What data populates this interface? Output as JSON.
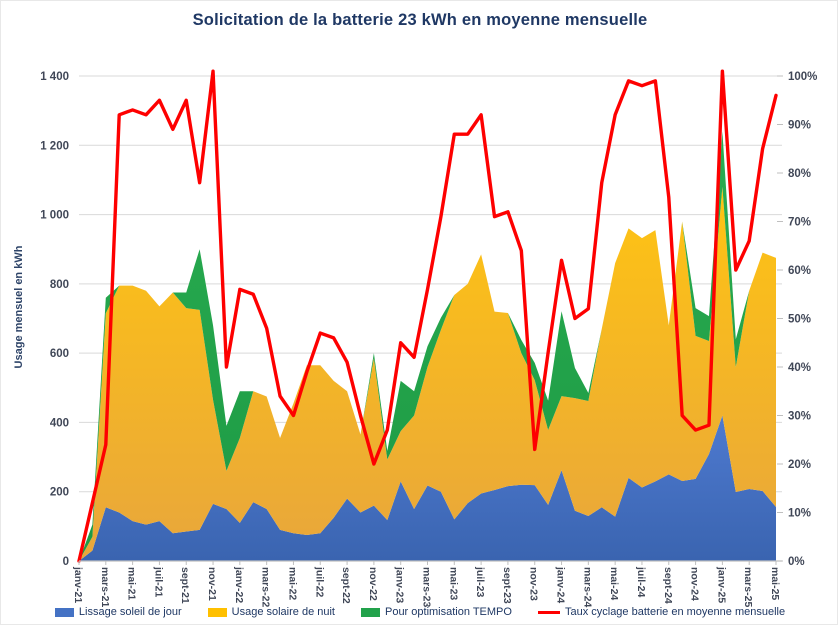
{
  "window": {
    "background": "#ffffff"
  },
  "colors": {
    "title_text": "#1F3864",
    "axis_text": "#404757",
    "gridline": "#D9D9D9",
    "axis_line": "#BFBFBF",
    "series_blue": "#4472C4",
    "series_yellow": "#FFC000",
    "series_green": "#22A24B",
    "series_red": "#FE0000"
  },
  "chart_data": {
    "type": "area",
    "subtype": "stacked-area with secondary-axis line",
    "title": "Solicitation de la batterie 23 kWh en moyenne mensuelle",
    "ylabel_left": "Usage mensuel en kWh",
    "y_left": {
      "min": 0,
      "max": 1400,
      "step": 200,
      "tick_labels": [
        "0",
        "200",
        "400",
        "600",
        "800",
        "1 000",
        "1 200",
        "1 400"
      ]
    },
    "y_right": {
      "min": 0,
      "max": 100,
      "step": 10,
      "format": "percent",
      "tick_labels": [
        "0%",
        "10%",
        "20%",
        "30%",
        "40%",
        "50%",
        "60%",
        "70%",
        "80%",
        "90%",
        "100%"
      ]
    },
    "grid": "horizontal",
    "legend_position": "bottom",
    "x_label_every": 2,
    "months": [
      "janv-21",
      "févr-21",
      "mars-21",
      "avr-21",
      "mai-21",
      "juin-21",
      "juil-21",
      "août-21",
      "sept-21",
      "oct-21",
      "nov-21",
      "déc-21",
      "janv-22",
      "févr-22",
      "mars-22",
      "avr-22",
      "mai-22",
      "juin-22",
      "juil-22",
      "août-22",
      "sept-22",
      "oct-22",
      "nov-22",
      "déc-22",
      "janv-23",
      "févr-23",
      "mars-23",
      "avr-23",
      "mai-23",
      "juin-23",
      "juil-23",
      "août-23",
      "sept-23",
      "oct-23",
      "nov-23",
      "déc-23",
      "janv-24",
      "févr-24",
      "mars-24",
      "avr-24",
      "mai-24",
      "juin-24",
      "juil-24",
      "août-24",
      "sept-24",
      "oct-24",
      "nov-24",
      "déc-24",
      "janv-25",
      "févr-25",
      "mars-25",
      "avr-25",
      "mai-25"
    ],
    "series": [
      {
        "name": "Lissage soleil de jour",
        "type": "stacked-area",
        "axis": "left",
        "color": "#4472C4",
        "values": [
          0,
          30,
          155,
          140,
          115,
          105,
          115,
          80,
          85,
          90,
          165,
          150,
          110,
          170,
          150,
          90,
          80,
          75,
          80,
          125,
          180,
          140,
          160,
          118,
          230,
          150,
          218,
          200,
          120,
          167,
          195,
          205,
          216,
          220,
          219,
          162,
          262,
          145,
          130,
          155,
          128,
          240,
          212,
          230,
          250,
          231,
          237,
          309,
          420,
          199,
          208,
          202,
          156
        ]
      },
      {
        "name": "Usage solaire de nuit",
        "type": "stacked-area",
        "axis": "left",
        "color": "#FFC000",
        "values": [
          0,
          40,
          560,
          655,
          680,
          675,
          620,
          695,
          645,
          635,
          300,
          110,
          245,
          320,
          325,
          265,
          375,
          490,
          485,
          395,
          310,
          225,
          425,
          175,
          145,
          270,
          342,
          467,
          648,
          633,
          690,
          515,
          500,
          380,
          303,
          216,
          214,
          325,
          332,
          515,
          732,
          720,
          720,
          725,
          430,
          749,
          413,
          326,
          660,
          361,
          572,
          688,
          719
        ]
      },
      {
        "name": "Pour optimisation TEMPO",
        "type": "stacked-area",
        "axis": "left",
        "color": "#22A24B",
        "values": [
          0,
          35,
          45,
          0,
          0,
          0,
          0,
          0,
          45,
          175,
          215,
          130,
          135,
          0,
          0,
          0,
          0,
          0,
          0,
          0,
          0,
          0,
          15,
          25,
          145,
          70,
          60,
          35,
          0,
          0,
          0,
          0,
          0,
          38,
          50,
          85,
          245,
          87,
          23,
          0,
          0,
          0,
          0,
          0,
          0,
          0,
          80,
          72,
          160,
          80,
          0,
          0,
          0
        ]
      },
      {
        "name": "Taux cyclage batterie en moyenne mensuelle",
        "type": "line",
        "axis": "right",
        "color": "#FE0000",
        "values": [
          0,
          12,
          24,
          92,
          93,
          92,
          95,
          89,
          95,
          78,
          101,
          40,
          56,
          55,
          48,
          34,
          30,
          39,
          47,
          46,
          41,
          30,
          20,
          27,
          45,
          42,
          56,
          71,
          88,
          88,
          92,
          71,
          72,
          64,
          23,
          43,
          62,
          50,
          52,
          78,
          92,
          99,
          98,
          99,
          75,
          30,
          27,
          28,
          101,
          60,
          66,
          85,
          96
        ]
      }
    ]
  }
}
